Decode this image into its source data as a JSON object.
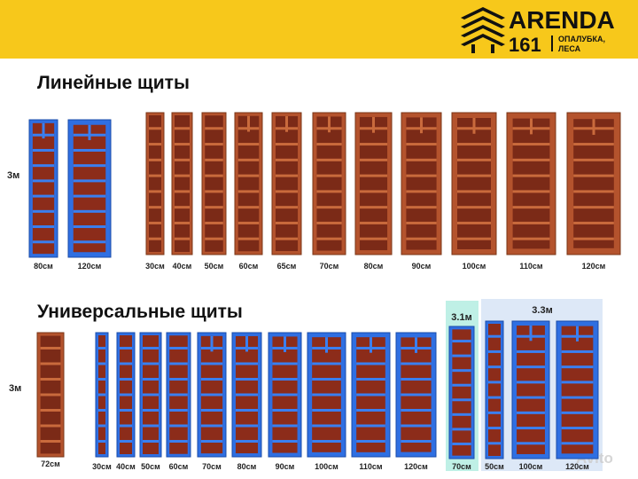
{
  "header": {
    "brand": "ARENDA",
    "number": "161",
    "tagline_1": "ОПАЛУБКА,",
    "tagline_2": "ЛЕСА"
  },
  "linear": {
    "title": "Линейные щиты",
    "height": "3м",
    "blue_labels": [
      "80см",
      "120см"
    ],
    "red_labels": [
      "30см",
      "40см",
      "50см",
      "60см",
      "65см",
      "70см",
      "80см",
      "90см",
      "100см",
      "110см",
      "120см"
    ]
  },
  "universal": {
    "title": "Универсальные щиты",
    "height": "3м",
    "red_labels": [
      "72см"
    ],
    "blue_labels": [
      "30см",
      "40см",
      "50см",
      "60см",
      "70см",
      "80см",
      "90см",
      "100см",
      "110см",
      "120см"
    ],
    "group_31": {
      "height": "3.1м",
      "labels": [
        "70см"
      ]
    },
    "group_33": {
      "height": "3.3м",
      "labels": [
        "50см",
        "100см",
        "120см"
      ]
    }
  },
  "watermark": "Avito"
}
